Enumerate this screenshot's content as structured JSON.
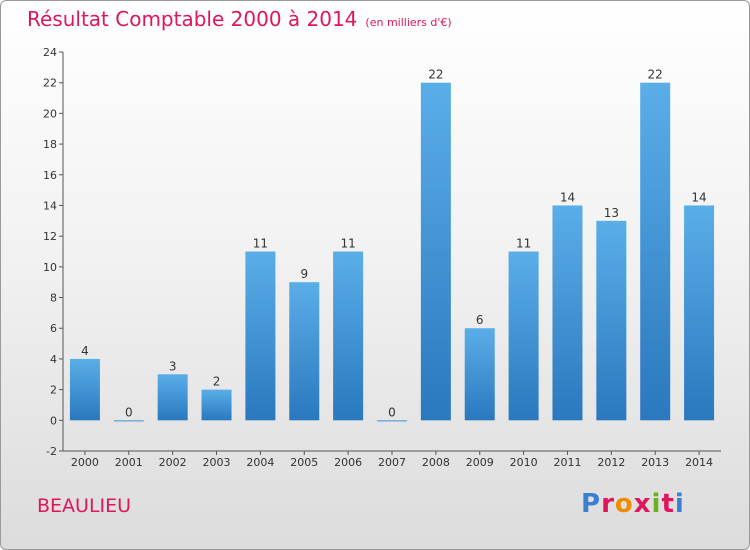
{
  "header": {
    "title": "Résultat Comptable 2000 à 2014",
    "subtitle": "(en milliers d'€)"
  },
  "footer": {
    "city": "BEAULIEU",
    "brand_letters": [
      "P",
      "r",
      "o",
      "x",
      "i",
      "t",
      "i"
    ],
    "brand_colors": [
      "#3b7fd1",
      "#e0155e",
      "#f08c00",
      "#e0155e",
      "#6ab023",
      "#e0155e",
      "#3b7fd1"
    ]
  },
  "chart_data": {
    "type": "bar",
    "categories": [
      "2000",
      "2001",
      "2002",
      "2003",
      "2004",
      "2005",
      "2006",
      "2007",
      "2008",
      "2009",
      "2010",
      "2011",
      "2012",
      "2013",
      "2014"
    ],
    "values": [
      4,
      0,
      3,
      2,
      11,
      9,
      11,
      0,
      22,
      6,
      11,
      14,
      13,
      22,
      14
    ],
    "ylim": [
      -2,
      24
    ],
    "yticks": [
      -2,
      0,
      2,
      4,
      6,
      8,
      10,
      12,
      14,
      16,
      18,
      20,
      22,
      24
    ],
    "grid": false,
    "bar_color": "#3d8fd6"
  }
}
